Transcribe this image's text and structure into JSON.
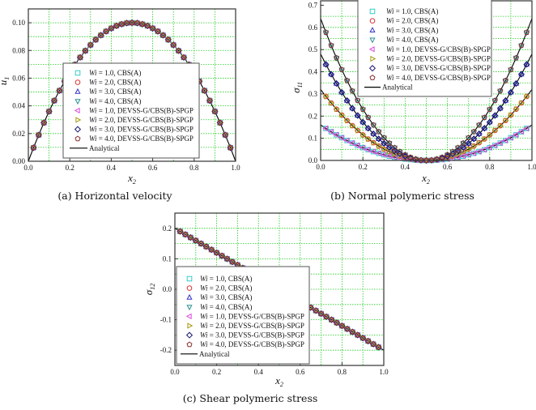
{
  "series_styles": [
    {
      "name": "Wi = 1.0, CBS(A)",
      "wi": 1,
      "marker": "square",
      "color": "#33cccc"
    },
    {
      "name": "Wi = 2.0, CBS(A)",
      "wi": 2,
      "marker": "circle",
      "color": "#dd3333"
    },
    {
      "name": "Wi = 3.0, CBS(A)",
      "wi": 3,
      "marker": "triangle-up",
      "color": "#3333cc"
    },
    {
      "name": "Wi = 4.0, CBS(A)",
      "wi": 4,
      "marker": "triangle-down",
      "color": "#2a9090"
    },
    {
      "name": "Wi = 1.0, DEVSS-G/CBS(B)-SPGP",
      "wi": 1,
      "marker": "triangle-left",
      "color": "#dd44dd"
    },
    {
      "name": "Wi = 2.0, DEVSS-G/CBS(B)-SPGP",
      "wi": 2,
      "marker": "triangle-right",
      "color": "#a89a10"
    },
    {
      "name": "Wi = 3.0, DEVSS-G/CBS(B)-SPGP",
      "wi": 3,
      "marker": "diamond",
      "color": "#151570"
    },
    {
      "name": "Wi = 4.0, DEVSS-G/CBS(B)-SPGP",
      "wi": 4,
      "marker": "pentagon",
      "color": "#8b3030"
    }
  ],
  "analytical_label": "Analytical",
  "chart_data": [
    {
      "type": "line",
      "caption": "(a) Horizontal velocity",
      "xlabel": {
        "main": "x",
        "sub": "2"
      },
      "ylabel": {
        "main": "u",
        "sub": "1"
      },
      "xlim": [
        0,
        1
      ],
      "ylim": [
        0,
        0.11
      ],
      "xticks": [
        "0.0",
        "0.2",
        "0.4",
        "0.6",
        "0.8",
        "1.0"
      ],
      "yticks": [
        "0.00",
        "0.02",
        "0.04",
        "0.06",
        "0.08",
        "0.10"
      ],
      "grid": true,
      "legend_placement": "center",
      "x": [
        0,
        0.025,
        0.05,
        0.075,
        0.1,
        0.125,
        0.15,
        0.175,
        0.2,
        0.225,
        0.25,
        0.275,
        0.3,
        0.325,
        0.35,
        0.375,
        0.4,
        0.425,
        0.45,
        0.475,
        0.5,
        0.525,
        0.55,
        0.575,
        0.6,
        0.625,
        0.65,
        0.675,
        0.7,
        0.725,
        0.75,
        0.775,
        0.8,
        0.825,
        0.85,
        0.875,
        0.9,
        0.925,
        0.95,
        0.975,
        1
      ],
      "curves": {
        "all": [
          0,
          0.0098,
          0.019,
          0.0278,
          0.036,
          0.0438,
          0.051,
          0.0578,
          0.064,
          0.0698,
          0.075,
          0.0798,
          0.084,
          0.0878,
          0.091,
          0.0938,
          0.096,
          0.0978,
          0.099,
          0.0998,
          0.1,
          0.0998,
          0.099,
          0.0978,
          0.096,
          0.0938,
          0.091,
          0.0878,
          0.084,
          0.0798,
          0.075,
          0.0698,
          0.064,
          0.0578,
          0.051,
          0.0438,
          0.036,
          0.0278,
          0.019,
          0.0098,
          0
        ]
      }
    },
    {
      "type": "line",
      "caption": "(b) Normal polymeric stress",
      "xlabel": {
        "main": "x",
        "sub": "2"
      },
      "ylabel": {
        "main": "σ",
        "sub": "11"
      },
      "xlim": [
        0,
        1
      ],
      "ylim": [
        0,
        0.72
      ],
      "xticks": [
        "0.0",
        "0.2",
        "0.4",
        "0.6",
        "0.8",
        "1.0"
      ],
      "yticks": [
        "0.0",
        "0.1",
        "0.2",
        "0.3",
        "0.4",
        "0.5",
        "0.6",
        "0.7"
      ],
      "grid": true,
      "legend_placement": "top-center",
      "x": [
        0,
        0.025,
        0.05,
        0.075,
        0.1,
        0.125,
        0.15,
        0.175,
        0.2,
        0.225,
        0.25,
        0.275,
        0.3,
        0.325,
        0.35,
        0.375,
        0.4,
        0.425,
        0.45,
        0.475,
        0.5,
        0.525,
        0.55,
        0.575,
        0.6,
        0.625,
        0.65,
        0.675,
        0.7,
        0.725,
        0.75,
        0.775,
        0.8,
        0.825,
        0.85,
        0.875,
        0.9,
        0.925,
        0.95,
        0.975,
        1
      ],
      "curves": {
        "1": [
          0.16,
          0.1444,
          0.1296,
          0.1156,
          0.1024,
          0.09,
          0.0784,
          0.0676,
          0.0576,
          0.0484,
          0.04,
          0.0324,
          0.0256,
          0.0196,
          0.0144,
          0.01,
          0.0064,
          0.0036,
          0.0016,
          0.0004,
          0,
          0.0004,
          0.0016,
          0.0036,
          0.0064,
          0.01,
          0.0144,
          0.0196,
          0.0256,
          0.0324,
          0.04,
          0.0484,
          0.0576,
          0.0676,
          0.0784,
          0.09,
          0.1024,
          0.1156,
          0.1296,
          0.1444,
          0.16
        ],
        "2": [
          0.32,
          0.2888,
          0.2592,
          0.2312,
          0.2048,
          0.18,
          0.1568,
          0.1352,
          0.1152,
          0.0968,
          0.08,
          0.0648,
          0.0512,
          0.0392,
          0.0288,
          0.02,
          0.0128,
          0.0072,
          0.0032,
          0.0008,
          0,
          0.0008,
          0.0032,
          0.0072,
          0.0128,
          0.02,
          0.0288,
          0.0392,
          0.0512,
          0.0648,
          0.08,
          0.0968,
          0.1152,
          0.1352,
          0.1568,
          0.18,
          0.2048,
          0.2312,
          0.2592,
          0.2888,
          0.32
        ],
        "3": [
          0.48,
          0.4332,
          0.3888,
          0.3468,
          0.3072,
          0.27,
          0.2352,
          0.2028,
          0.1728,
          0.1452,
          0.12,
          0.0972,
          0.0768,
          0.0588,
          0.0432,
          0.03,
          0.0192,
          0.0108,
          0.0048,
          0.0012,
          0,
          0.0012,
          0.0048,
          0.0108,
          0.0192,
          0.03,
          0.0432,
          0.0588,
          0.0768,
          0.0972,
          0.12,
          0.1452,
          0.1728,
          0.2028,
          0.2352,
          0.27,
          0.3072,
          0.3468,
          0.3888,
          0.4332,
          0.48
        ],
        "4": [
          0.64,
          0.5776,
          0.5184,
          0.4624,
          0.4096,
          0.36,
          0.3136,
          0.2704,
          0.2304,
          0.1936,
          0.16,
          0.1296,
          0.1024,
          0.0784,
          0.0576,
          0.04,
          0.0256,
          0.0144,
          0.0064,
          0.0016,
          0,
          0.0016,
          0.0064,
          0.0144,
          0.0256,
          0.04,
          0.0576,
          0.0784,
          0.1024,
          0.1296,
          0.16,
          0.1936,
          0.2304,
          0.2704,
          0.3136,
          0.36,
          0.4096,
          0.4624,
          0.5184,
          0.5776,
          0.64
        ]
      }
    },
    {
      "type": "line",
      "caption": "(c) Shear polymeric stress",
      "xlabel": {
        "main": "x",
        "sub": "2"
      },
      "ylabel": {
        "main": "σ",
        "sub": "12"
      },
      "xlim": [
        0,
        1
      ],
      "ylim": [
        -0.25,
        0.25
      ],
      "xticks": [
        "0.0",
        "0.2",
        "0.4",
        "0.6",
        "0.8",
        "1.0"
      ],
      "yticks": [
        "-0.2",
        "-0.1",
        "0.0",
        "0.1",
        "0.2"
      ],
      "grid": true,
      "legend_placement": "bottom-left",
      "x": [
        0,
        0.025,
        0.05,
        0.075,
        0.1,
        0.125,
        0.15,
        0.175,
        0.2,
        0.225,
        0.25,
        0.275,
        0.3,
        0.325,
        0.35,
        0.375,
        0.4,
        0.425,
        0.45,
        0.475,
        0.5,
        0.525,
        0.55,
        0.575,
        0.6,
        0.625,
        0.65,
        0.675,
        0.7,
        0.725,
        0.75,
        0.775,
        0.8,
        0.825,
        0.85,
        0.875,
        0.9,
        0.925,
        0.95,
        0.975,
        1
      ],
      "curves": {
        "all": [
          0.2,
          0.19,
          0.18,
          0.17,
          0.16,
          0.15,
          0.14,
          0.13,
          0.12,
          0.11,
          0.1,
          0.09,
          0.08,
          0.07,
          0.06,
          0.05,
          0.04,
          0.03,
          0.02,
          0.01,
          0,
          -0.01,
          -0.02,
          -0.03,
          -0.04,
          -0.05,
          -0.06,
          -0.07,
          -0.08,
          -0.09,
          -0.1,
          -0.11,
          -0.12,
          -0.13,
          -0.14,
          -0.15,
          -0.16,
          -0.17,
          -0.18,
          -0.19,
          -0.2
        ]
      }
    }
  ]
}
